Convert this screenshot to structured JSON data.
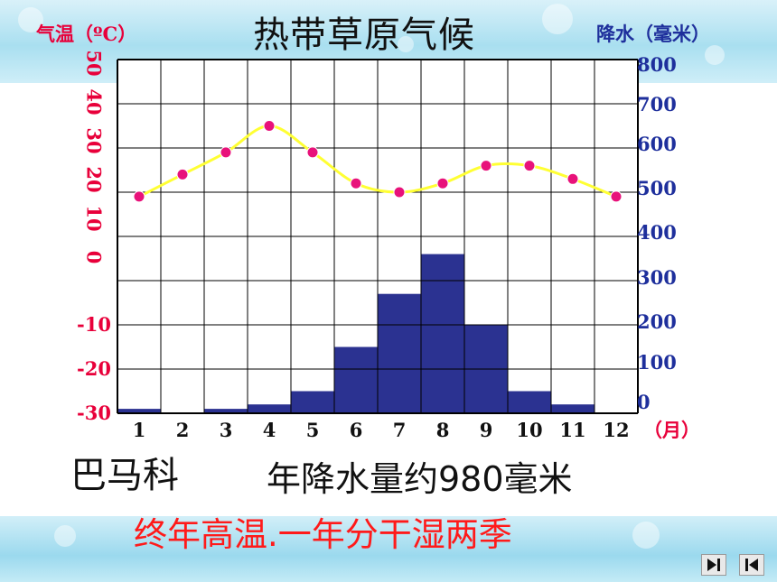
{
  "slide": {
    "title": "热带草原气候",
    "left_axis_title": "气温（ºC）",
    "right_axis_title": "降水（毫米）",
    "month_unit": "（月）",
    "place": "巴马科",
    "annual_precip": "年降水量约980毫米",
    "summary": "终年高温.一年分干湿两季"
  },
  "colors": {
    "temperature_axis": "#e8003a",
    "precipitation_axis": "#1e2f9c",
    "bar_fill": "#2b3291",
    "temperature_line": "#ffff33",
    "temperature_marker": "#e8127a",
    "summary_text": "#ff1a1a"
  },
  "navigation": {
    "next_icon": "play-next-icon",
    "prev_icon": "play-prev-icon"
  },
  "chart_data": {
    "type": "bar",
    "title": "热带草原气候",
    "categories": [
      "1",
      "2",
      "3",
      "4",
      "5",
      "6",
      "7",
      "8",
      "9",
      "10",
      "11",
      "12"
    ],
    "x_unit_label": "（月）",
    "grid": true,
    "series": [
      {
        "kind": "bar",
        "axis": "right",
        "values": [
          10,
          0,
          10,
          20,
          50,
          150,
          270,
          360,
          200,
          50,
          20,
          0
        ]
      },
      {
        "kind": "line",
        "axis": "left",
        "values": [
          19,
          24,
          29,
          35,
          29,
          22,
          20,
          22,
          26,
          26,
          23,
          19
        ]
      }
    ],
    "y_left": {
      "label": "气温（ºC）",
      "ticks_top": [
        "50",
        "40",
        "30",
        "20",
        "10",
        "0"
      ],
      "ticks_bottom": [
        "-10",
        "-20",
        "-30"
      ],
      "range": [
        -30,
        50
      ]
    },
    "y_right": {
      "label": "降水（毫米）",
      "ticks": [
        "800",
        "700",
        "600",
        "500",
        "400",
        "300",
        "200",
        "100",
        "0"
      ],
      "range": [
        0,
        800
      ]
    }
  }
}
